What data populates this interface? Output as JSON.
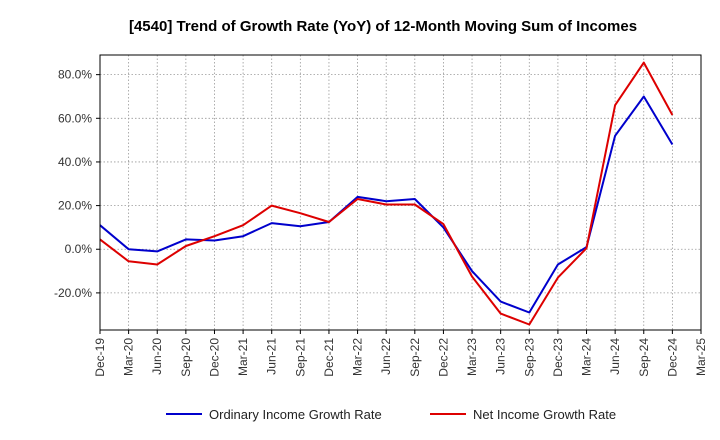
{
  "chart_data": {
    "type": "line",
    "title": "[4540]  Trend of Growth Rate (YoY) of 12-Month Moving Sum of Incomes",
    "xlabel": "",
    "ylabel": "",
    "x": [
      "Dec-19",
      "Mar-20",
      "Jun-20",
      "Sep-20",
      "Dec-20",
      "Mar-21",
      "Jun-21",
      "Sep-21",
      "Dec-21",
      "Mar-22",
      "Jun-22",
      "Sep-22",
      "Dec-22",
      "Mar-23",
      "Jun-23",
      "Sep-23",
      "Dec-23",
      "Mar-24",
      "Jun-24",
      "Sep-24",
      "Dec-24",
      "Mar-25"
    ],
    "y_ticks": [
      80,
      60,
      40,
      20,
      0,
      -20
    ],
    "y_tick_labels": [
      "80.0%",
      "60.0%",
      "40.0%",
      "20.0%",
      "0.0%",
      "-20.0%"
    ],
    "ylim": [
      -37,
      89
    ],
    "grid": true,
    "legend_position": "bottom",
    "series": [
      {
        "name": "Ordinary Income Growth Rate",
        "color": "#0000cc",
        "values": [
          11,
          0,
          -1,
          4.5,
          4,
          6,
          12,
          10.5,
          12.5,
          24,
          22,
          23,
          10,
          -10,
          -24,
          -29,
          -7,
          1,
          52,
          70,
          48,
          null
        ]
      },
      {
        "name": "Net Income Growth Rate",
        "color": "#dd0000",
        "values": [
          4.5,
          -5.5,
          -7,
          1.5,
          6,
          11,
          20,
          16.5,
          12.5,
          23,
          20.5,
          20.5,
          11.5,
          -12.5,
          -29.5,
          -34.5,
          -13,
          0.5,
          66,
          85.5,
          61.5,
          null
        ]
      }
    ]
  }
}
